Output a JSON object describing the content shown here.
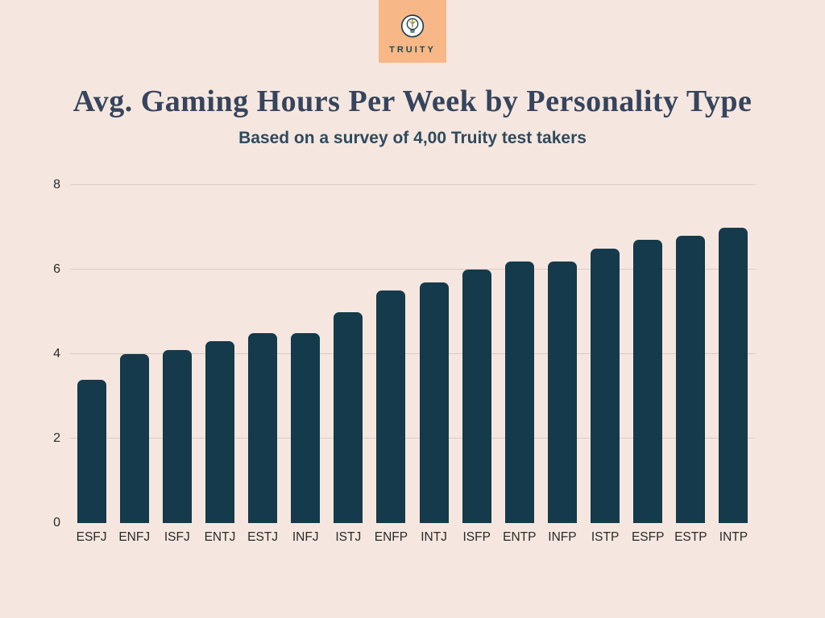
{
  "logo": {
    "brand": "TRUITY",
    "icon": "lightbulb-plant-icon",
    "bg_color": "#f7b787",
    "text_color": "#1d4a52"
  },
  "header": {
    "title": "Avg. Gaming Hours Per Week by Personality Type",
    "subtitle": "Based on a survey of 4,00 Truity test takers"
  },
  "chart_data": {
    "type": "bar",
    "title": "Avg. Gaming Hours Per Week by Personality Type",
    "subtitle": "Based on a survey of 4,00 Truity test takers",
    "categories": [
      "ESFJ",
      "ENFJ",
      "ISFJ",
      "ENTJ",
      "ESTJ",
      "INFJ",
      "ISTJ",
      "ENFP",
      "INTJ",
      "ISFP",
      "ENTP",
      "INFP",
      "ISTP",
      "ESFP",
      "ESTP",
      "INTP"
    ],
    "values": [
      3.4,
      4.0,
      4.1,
      4.3,
      4.5,
      4.5,
      5.0,
      5.5,
      5.7,
      6.0,
      6.2,
      6.2,
      6.5,
      6.7,
      6.8,
      7.0
    ],
    "xlabel": "",
    "ylabel": "",
    "ylim": [
      0,
      8
    ],
    "yticks": [
      0,
      2,
      4,
      6,
      8
    ],
    "grid": "horizontal",
    "legend": "none",
    "bar_color": "#143a4b",
    "gridline_color": "#d9ccc4",
    "background": "#f5e7df"
  }
}
